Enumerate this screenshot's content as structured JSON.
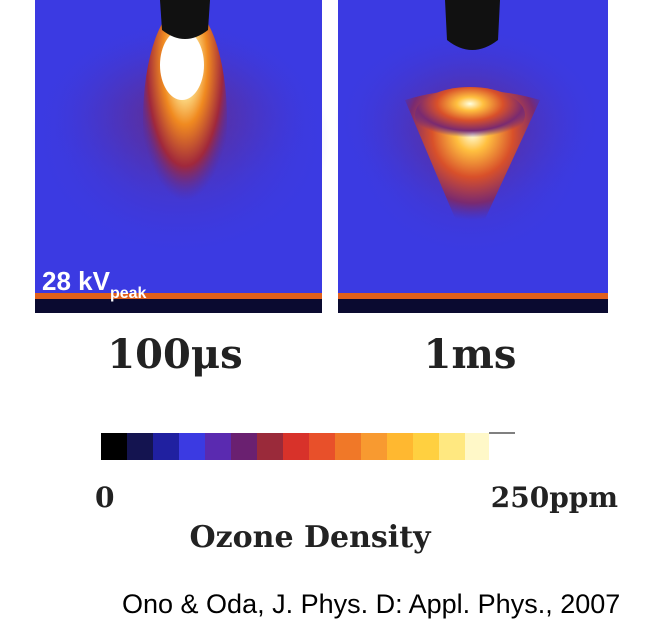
{
  "panels": [
    {
      "label": "28 kV",
      "label_sub": "peak",
      "time": "100μs"
    },
    {
      "time": "1ms"
    }
  ],
  "colorbar": {
    "min_label": "0",
    "max_label": "250ppm",
    "title": "Ozone Density"
  },
  "caption": "Ono & Oda, J. Phys. D: Appl. Phys., 2007"
}
